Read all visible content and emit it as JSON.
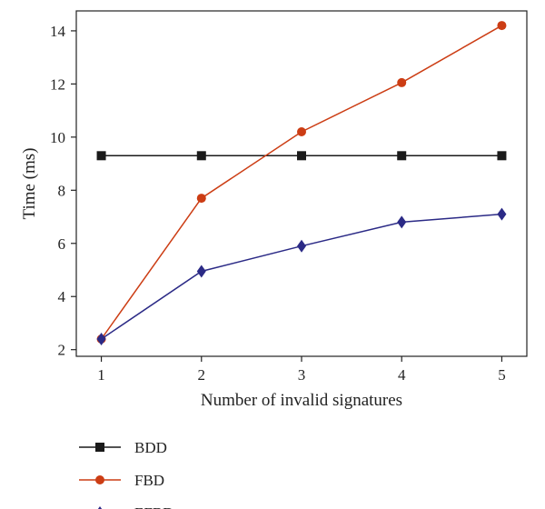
{
  "chart_data": {
    "type": "line",
    "title": "",
    "xlabel": "Number of invalid signatures",
    "ylabel": "Time (ms)",
    "x": [
      1,
      2,
      3,
      4,
      5
    ],
    "xticks": [
      "1",
      "2",
      "3",
      "4",
      "5"
    ],
    "yticks": [
      "2",
      "4",
      "6",
      "8",
      "10",
      "12",
      "14"
    ],
    "xlim": [
      0.75,
      5.25
    ],
    "ylim": [
      1.75,
      14.75
    ],
    "grid": false,
    "legend_position": "bottom-left",
    "series": [
      {
        "name": "BDD",
        "color": "#1a1a1a",
        "marker": "square",
        "values": [
          9.3,
          9.3,
          9.3,
          9.3,
          9.3
        ]
      },
      {
        "name": "FBD",
        "color": "#cc3d14",
        "marker": "circle",
        "values": [
          2.4,
          7.7,
          10.2,
          12.05,
          14.2
        ]
      },
      {
        "name": "EFBD",
        "color": "#2b2a86",
        "marker": "diamond",
        "values": [
          2.4,
          4.95,
          5.9,
          6.8,
          7.1
        ]
      }
    ]
  }
}
